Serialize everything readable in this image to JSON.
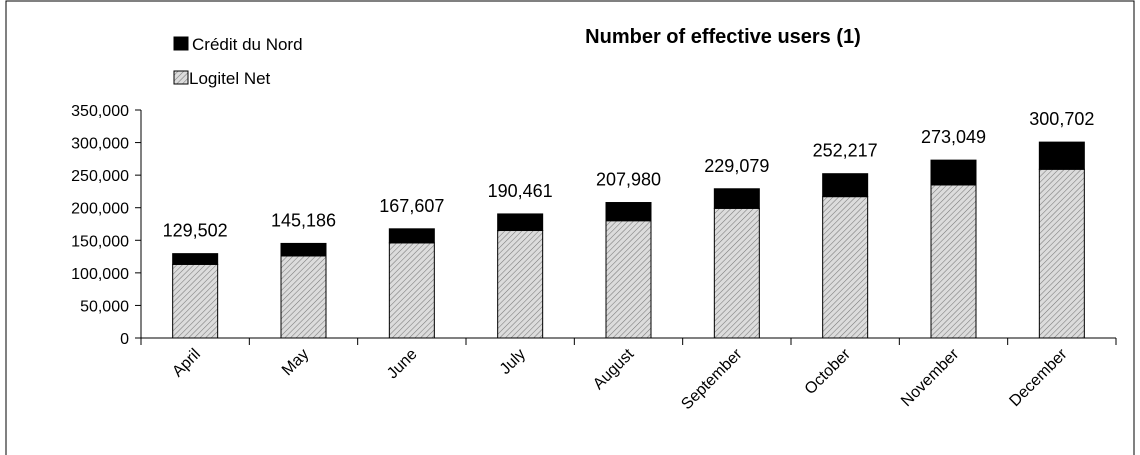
{
  "chart_data": {
    "type": "bar",
    "stacked": true,
    "title": "Number of effective users (1)",
    "categories": [
      "April",
      "May",
      "June",
      "July",
      "August",
      "September",
      "October",
      "November",
      "December"
    ],
    "series": [
      {
        "name": "Logitel Net",
        "values": [
          113000,
          126000,
          146000,
          165000,
          180000,
          199000,
          217000,
          235000,
          259000
        ]
      },
      {
        "name": "Crédit du Nord",
        "values": [
          16502,
          19186,
          21607,
          25461,
          27980,
          30079,
          35217,
          38049,
          41702
        ]
      }
    ],
    "totals": [
      "129,502",
      "145,186",
      "167,607",
      "190,461",
      "207,980",
      "229,079",
      "252,217",
      "273,049",
      "300,702"
    ],
    "yticks": [
      "0",
      "50,000",
      "100,000",
      "150,000",
      "200,000",
      "250,000",
      "300,000",
      "350,000"
    ],
    "ylim": [
      0,
      350000
    ],
    "legend_position": "top-left",
    "grid": false,
    "colors": {
      "logitel": "#d8d8d8",
      "credit": "#000000"
    }
  }
}
